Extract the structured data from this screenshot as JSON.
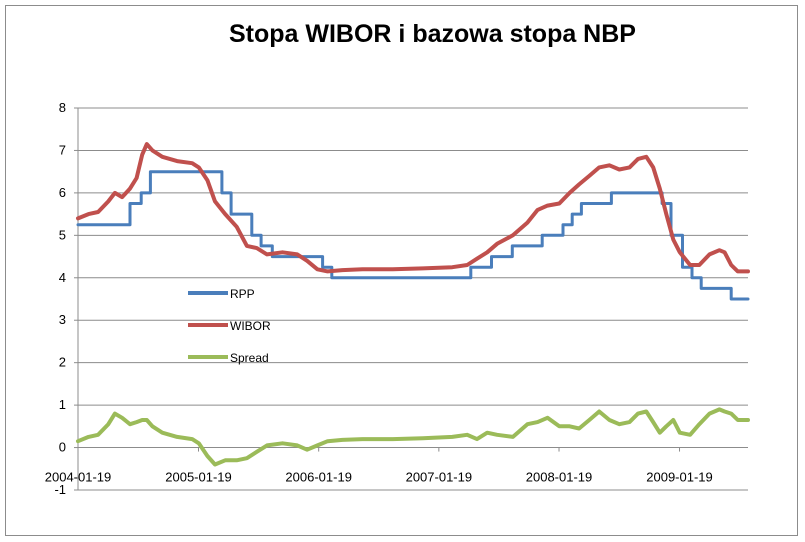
{
  "chart_data": {
    "type": "line",
    "title": "Stopa WIBOR i bazowa stopa NBP",
    "xlabel": "",
    "ylabel": "",
    "ylim": [
      -1,
      8
    ],
    "y_ticks": [
      "-1",
      "0",
      "1",
      "2",
      "3",
      "4",
      "5",
      "6",
      "7",
      "8"
    ],
    "x_tick_labels": [
      "2004-01-19",
      "2005-01-19",
      "2006-01-19",
      "2007-01-19",
      "2008-01-19",
      "2009-01-19"
    ],
    "xlim": [
      "2004-01-19",
      "2009-08-15"
    ],
    "grid": "horizontal",
    "legend_position": "center-left",
    "series": [
      {
        "name": "RPP",
        "color": "#4a7ebb",
        "step": true,
        "points": [
          [
            "2004-01-19",
            5.25
          ],
          [
            "2004-06-25",
            5.75
          ],
          [
            "2004-07-29",
            6.0
          ],
          [
            "2004-08-26",
            6.5
          ],
          [
            "2005-03-31",
            6.0
          ],
          [
            "2005-04-28",
            5.5
          ],
          [
            "2005-06-30",
            5.0
          ],
          [
            "2005-07-28",
            4.75
          ],
          [
            "2005-08-31",
            4.5
          ],
          [
            "2006-01-31",
            4.25
          ],
          [
            "2006-02-28",
            4.0
          ],
          [
            "2007-04-26",
            4.25
          ],
          [
            "2007-06-28",
            4.5
          ],
          [
            "2007-08-30",
            4.75
          ],
          [
            "2007-11-29",
            5.0
          ],
          [
            "2008-01-31",
            5.25
          ],
          [
            "2008-02-28",
            5.5
          ],
          [
            "2008-03-27",
            5.75
          ],
          [
            "2008-06-26",
            6.0
          ],
          [
            "2008-11-27",
            5.75
          ],
          [
            "2008-12-24",
            5.0
          ],
          [
            "2009-01-28",
            4.25
          ],
          [
            "2009-02-26",
            4.0
          ],
          [
            "2009-03-26",
            3.75
          ],
          [
            "2009-06-25",
            3.5
          ],
          [
            "2009-08-15",
            3.5
          ]
        ]
      },
      {
        "name": "WIBOR",
        "color": "#c0504d",
        "step": false,
        "points": [
          [
            "2004-01-19",
            5.4
          ],
          [
            "2004-02-20",
            5.5
          ],
          [
            "2004-03-20",
            5.55
          ],
          [
            "2004-04-20",
            5.8
          ],
          [
            "2004-05-10",
            6.0
          ],
          [
            "2004-06-01",
            5.9
          ],
          [
            "2004-06-25",
            6.1
          ],
          [
            "2004-07-15",
            6.35
          ],
          [
            "2004-08-01",
            6.9
          ],
          [
            "2004-08-15",
            7.15
          ],
          [
            "2004-09-01",
            7.0
          ],
          [
            "2004-10-01",
            6.85
          ],
          [
            "2004-11-15",
            6.75
          ],
          [
            "2004-12-31",
            6.7
          ],
          [
            "2005-01-20",
            6.6
          ],
          [
            "2005-02-15",
            6.3
          ],
          [
            "2005-03-10",
            5.8
          ],
          [
            "2005-04-10",
            5.5
          ],
          [
            "2005-05-15",
            5.2
          ],
          [
            "2005-06-15",
            4.75
          ],
          [
            "2005-07-15",
            4.7
          ],
          [
            "2005-08-15",
            4.55
          ],
          [
            "2005-10-01",
            4.6
          ],
          [
            "2005-11-15",
            4.55
          ],
          [
            "2005-12-15",
            4.4
          ],
          [
            "2006-01-15",
            4.2
          ],
          [
            "2006-02-15",
            4.15
          ],
          [
            "2006-04-01",
            4.18
          ],
          [
            "2006-06-01",
            4.2
          ],
          [
            "2006-09-01",
            4.2
          ],
          [
            "2006-12-01",
            4.22
          ],
          [
            "2007-03-01",
            4.25
          ],
          [
            "2007-04-15",
            4.3
          ],
          [
            "2007-05-15",
            4.45
          ],
          [
            "2007-06-15",
            4.6
          ],
          [
            "2007-07-15",
            4.8
          ],
          [
            "2007-09-01",
            5.0
          ],
          [
            "2007-10-15",
            5.3
          ],
          [
            "2007-11-15",
            5.6
          ],
          [
            "2007-12-15",
            5.7
          ],
          [
            "2008-01-20",
            5.75
          ],
          [
            "2008-02-20",
            6.0
          ],
          [
            "2008-03-20",
            6.2
          ],
          [
            "2008-04-20",
            6.4
          ],
          [
            "2008-05-20",
            6.6
          ],
          [
            "2008-06-20",
            6.65
          ],
          [
            "2008-07-20",
            6.55
          ],
          [
            "2008-08-20",
            6.6
          ],
          [
            "2008-09-15",
            6.8
          ],
          [
            "2008-10-10",
            6.85
          ],
          [
            "2008-10-31",
            6.6
          ],
          [
            "2008-11-20",
            6.1
          ],
          [
            "2008-12-10",
            5.5
          ],
          [
            "2008-12-31",
            4.9
          ],
          [
            "2009-01-20",
            4.6
          ],
          [
            "2009-02-20",
            4.3
          ],
          [
            "2009-03-20",
            4.3
          ],
          [
            "2009-04-20",
            4.55
          ],
          [
            "2009-05-20",
            4.65
          ],
          [
            "2009-06-05",
            4.6
          ],
          [
            "2009-06-25",
            4.3
          ],
          [
            "2009-07-15",
            4.15
          ],
          [
            "2009-08-15",
            4.15
          ]
        ]
      },
      {
        "name": "Spread",
        "color": "#9bbb59",
        "step": false,
        "points": [
          [
            "2004-01-19",
            0.15
          ],
          [
            "2004-02-20",
            0.25
          ],
          [
            "2004-03-20",
            0.3
          ],
          [
            "2004-04-20",
            0.55
          ],
          [
            "2004-05-10",
            0.8
          ],
          [
            "2004-06-01",
            0.7
          ],
          [
            "2004-06-25",
            0.55
          ],
          [
            "2004-07-15",
            0.6
          ],
          [
            "2004-08-01",
            0.65
          ],
          [
            "2004-08-15",
            0.65
          ],
          [
            "2004-09-01",
            0.5
          ],
          [
            "2004-10-01",
            0.35
          ],
          [
            "2004-11-15",
            0.25
          ],
          [
            "2004-12-31",
            0.2
          ],
          [
            "2005-01-20",
            0.1
          ],
          [
            "2005-02-15",
            -0.2
          ],
          [
            "2005-03-10",
            -0.4
          ],
          [
            "2005-04-10",
            -0.3
          ],
          [
            "2005-05-15",
            -0.3
          ],
          [
            "2005-06-15",
            -0.25
          ],
          [
            "2005-07-15",
            -0.1
          ],
          [
            "2005-08-15",
            0.05
          ],
          [
            "2005-10-01",
            0.1
          ],
          [
            "2005-11-15",
            0.05
          ],
          [
            "2005-12-15",
            -0.05
          ],
          [
            "2006-01-15",
            0.05
          ],
          [
            "2006-02-15",
            0.15
          ],
          [
            "2006-04-01",
            0.18
          ],
          [
            "2006-06-01",
            0.2
          ],
          [
            "2006-09-01",
            0.2
          ],
          [
            "2006-12-01",
            0.22
          ],
          [
            "2007-03-01",
            0.25
          ],
          [
            "2007-04-15",
            0.3
          ],
          [
            "2007-05-15",
            0.2
          ],
          [
            "2007-06-15",
            0.35
          ],
          [
            "2007-07-15",
            0.3
          ],
          [
            "2007-09-01",
            0.25
          ],
          [
            "2007-10-15",
            0.55
          ],
          [
            "2007-11-15",
            0.6
          ],
          [
            "2007-12-15",
            0.7
          ],
          [
            "2008-01-20",
            0.5
          ],
          [
            "2008-02-20",
            0.5
          ],
          [
            "2008-03-20",
            0.45
          ],
          [
            "2008-04-20",
            0.65
          ],
          [
            "2008-05-20",
            0.85
          ],
          [
            "2008-06-20",
            0.65
          ],
          [
            "2008-07-20",
            0.55
          ],
          [
            "2008-08-20",
            0.6
          ],
          [
            "2008-09-15",
            0.8
          ],
          [
            "2008-10-10",
            0.85
          ],
          [
            "2008-10-31",
            0.6
          ],
          [
            "2008-11-20",
            0.35
          ],
          [
            "2008-12-10",
            0.5
          ],
          [
            "2008-12-31",
            0.65
          ],
          [
            "2009-01-20",
            0.35
          ],
          [
            "2009-02-20",
            0.3
          ],
          [
            "2009-03-20",
            0.55
          ],
          [
            "2009-04-20",
            0.8
          ],
          [
            "2009-05-20",
            0.9
          ],
          [
            "2009-06-05",
            0.85
          ],
          [
            "2009-06-25",
            0.8
          ],
          [
            "2009-07-15",
            0.65
          ],
          [
            "2009-08-15",
            0.65
          ]
        ]
      }
    ]
  }
}
